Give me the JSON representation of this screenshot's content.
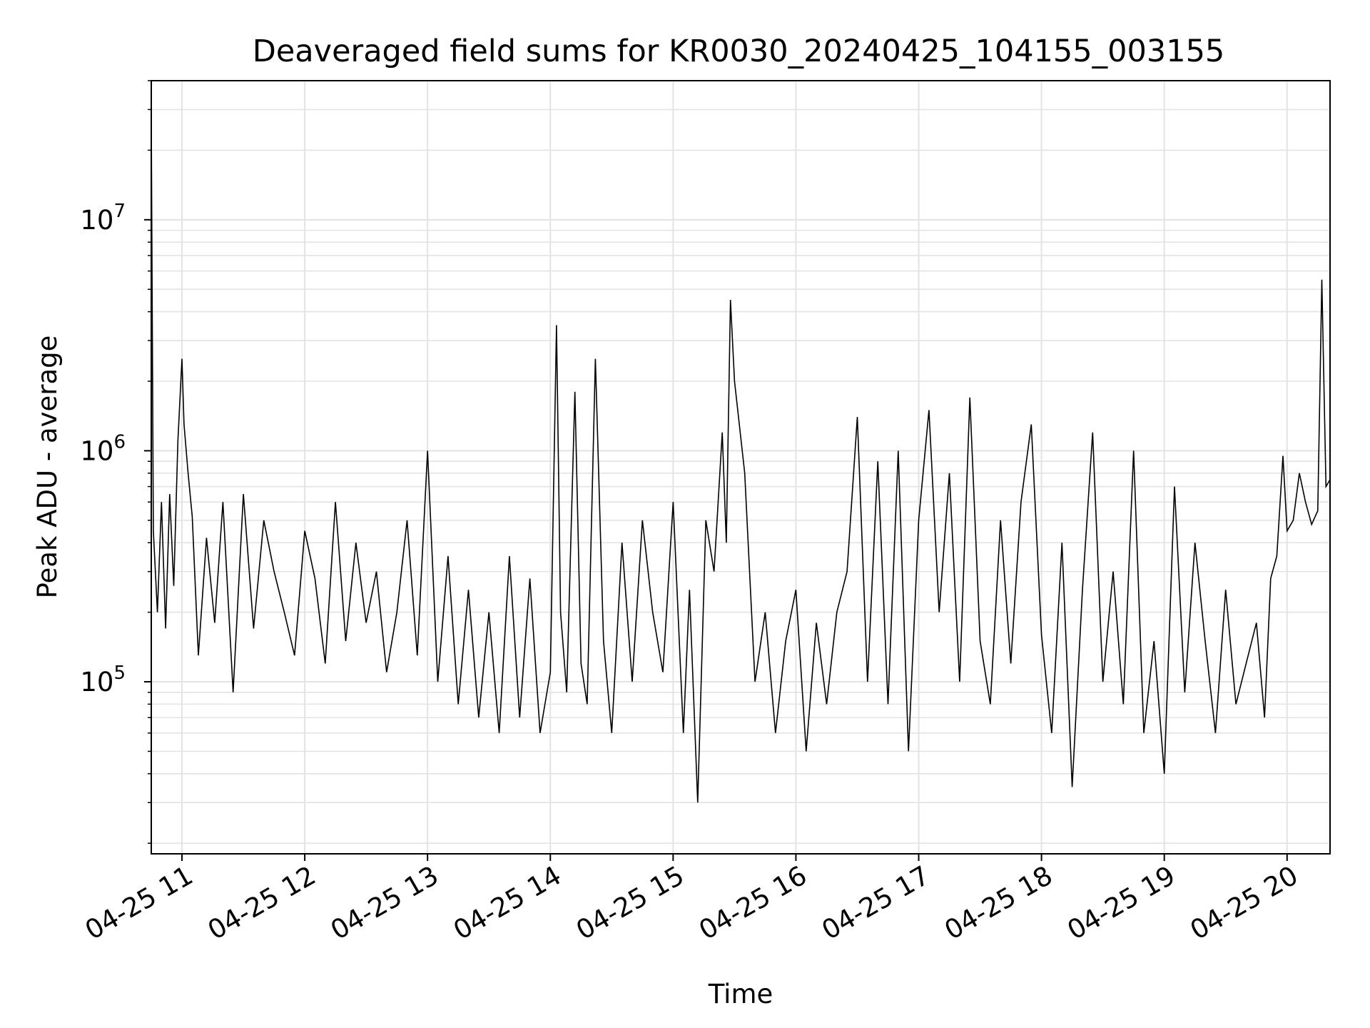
{
  "chart_data": {
    "type": "line",
    "title": "Deaveraged field sums for KR0030_20240425_104155_003155",
    "xlabel": "Time",
    "ylabel": "Peak ADU - average",
    "yscale": "log",
    "ylim": [
      18000,
      40000000
    ],
    "xlim": [
      "2024-04-25 10:45",
      "2024-04-25 20:21"
    ],
    "grid": "both",
    "x_ticks": [
      "2024-04-25 11:00",
      "2024-04-25 12:00",
      "2024-04-25 13:00",
      "2024-04-25 14:00",
      "2024-04-25 15:00",
      "2024-04-25 16:00",
      "2024-04-25 17:00",
      "2024-04-25 18:00",
      "2024-04-25 19:00",
      "2024-04-25 20:00"
    ],
    "x_tick_labels": [
      "04-25 11",
      "04-25 12",
      "04-25 13",
      "04-25 14",
      "04-25 15",
      "04-25 16",
      "04-25 17",
      "04-25 18",
      "04-25 19",
      "04-25 20"
    ],
    "y_ticks": [
      {
        "base": "10",
        "exp": "5",
        "value": 100000
      },
      {
        "base": "10",
        "exp": "6",
        "value": 1000000
      },
      {
        "base": "10",
        "exp": "7",
        "value": 10000000
      }
    ],
    "line_color": "#000000",
    "series": [
      {
        "x": [
          "2024-04-25 10:45",
          "2024-04-25 10:46",
          "2024-04-25 10:48",
          "2024-04-25 10:50",
          "2024-04-25 10:52",
          "2024-04-25 10:54",
          "2024-04-25 10:56",
          "2024-04-25 10:58",
          "2024-04-25 11:00",
          "2024-04-25 11:01",
          "2024-04-25 11:03",
          "2024-04-25 11:05",
          "2024-04-25 11:08",
          "2024-04-25 11:12",
          "2024-04-25 11:16",
          "2024-04-25 11:20",
          "2024-04-25 11:25",
          "2024-04-25 11:30",
          "2024-04-25 11:35",
          "2024-04-25 11:40",
          "2024-04-25 11:45",
          "2024-04-25 11:50",
          "2024-04-25 11:55",
          "2024-04-25 12:00",
          "2024-04-25 12:05",
          "2024-04-25 12:10",
          "2024-04-25 12:15",
          "2024-04-25 12:20",
          "2024-04-25 12:25",
          "2024-04-25 12:30",
          "2024-04-25 12:35",
          "2024-04-25 12:40",
          "2024-04-25 12:45",
          "2024-04-25 12:50",
          "2024-04-25 12:55",
          "2024-04-25 13:00",
          "2024-04-25 13:05",
          "2024-04-25 13:10",
          "2024-04-25 13:15",
          "2024-04-25 13:20",
          "2024-04-25 13:25",
          "2024-04-25 13:30",
          "2024-04-25 13:35",
          "2024-04-25 13:40",
          "2024-04-25 13:45",
          "2024-04-25 13:50",
          "2024-04-25 13:55",
          "2024-04-25 14:00",
          "2024-04-25 14:03",
          "2024-04-25 14:05",
          "2024-04-25 14:08",
          "2024-04-25 14:12",
          "2024-04-25 14:15",
          "2024-04-25 14:18",
          "2024-04-25 14:22",
          "2024-04-25 14:26",
          "2024-04-25 14:30",
          "2024-04-25 14:35",
          "2024-04-25 14:40",
          "2024-04-25 14:45",
          "2024-04-25 14:50",
          "2024-04-25 14:55",
          "2024-04-25 15:00",
          "2024-04-25 15:05",
          "2024-04-25 15:08",
          "2024-04-25 15:12",
          "2024-04-25 15:16",
          "2024-04-25 15:20",
          "2024-04-25 15:24",
          "2024-04-25 15:26",
          "2024-04-25 15:28",
          "2024-04-25 15:30",
          "2024-04-25 15:35",
          "2024-04-25 15:40",
          "2024-04-25 15:45",
          "2024-04-25 15:50",
          "2024-04-25 15:55",
          "2024-04-25 16:00",
          "2024-04-25 16:05",
          "2024-04-25 16:10",
          "2024-04-25 16:15",
          "2024-04-25 16:20",
          "2024-04-25 16:25",
          "2024-04-25 16:30",
          "2024-04-25 16:35",
          "2024-04-25 16:40",
          "2024-04-25 16:45",
          "2024-04-25 16:50",
          "2024-04-25 16:55",
          "2024-04-25 17:00",
          "2024-04-25 17:05",
          "2024-04-25 17:10",
          "2024-04-25 17:15",
          "2024-04-25 17:20",
          "2024-04-25 17:25",
          "2024-04-25 17:30",
          "2024-04-25 17:35",
          "2024-04-25 17:40",
          "2024-04-25 17:45",
          "2024-04-25 17:50",
          "2024-04-25 17:55",
          "2024-04-25 18:00",
          "2024-04-25 18:05",
          "2024-04-25 18:10",
          "2024-04-25 18:15",
          "2024-04-25 18:20",
          "2024-04-25 18:25",
          "2024-04-25 18:30",
          "2024-04-25 18:35",
          "2024-04-25 18:40",
          "2024-04-25 18:45",
          "2024-04-25 18:50",
          "2024-04-25 18:55",
          "2024-04-25 19:00",
          "2024-04-25 19:05",
          "2024-04-25 19:10",
          "2024-04-25 19:15",
          "2024-04-25 19:20",
          "2024-04-25 19:25",
          "2024-04-25 19:30",
          "2024-04-25 19:35",
          "2024-04-25 19:40",
          "2024-04-25 19:45",
          "2024-04-25 19:49",
          "2024-04-25 19:52",
          "2024-04-25 19:55",
          "2024-04-25 19:58",
          "2024-04-25 20:00",
          "2024-04-25 20:03",
          "2024-04-25 20:06",
          "2024-04-25 20:09",
          "2024-04-25 20:12",
          "2024-04-25 20:15",
          "2024-04-25 20:17",
          "2024-04-25 20:19",
          "2024-04-25 20:21"
        ],
        "y": [
          28000000,
          450000,
          200000,
          600000,
          170000,
          650000,
          260000,
          1100000,
          2500000,
          1300000,
          800000,
          520000,
          130000,
          420000,
          180000,
          600000,
          90000,
          650000,
          170000,
          500000,
          300000,
          200000,
          130000,
          450000,
          280000,
          120000,
          600000,
          150000,
          400000,
          180000,
          300000,
          110000,
          200000,
          500000,
          130000,
          1000000,
          100000,
          350000,
          80000,
          250000,
          70000,
          200000,
          60000,
          350000,
          70000,
          280000,
          60000,
          110000,
          3500000,
          200000,
          90000,
          1800000,
          120000,
          80000,
          2500000,
          150000,
          60000,
          400000,
          100000,
          500000,
          200000,
          110000,
          600000,
          60000,
          250000,
          30000,
          500000,
          300000,
          1200000,
          400000,
          4500000,
          2000000,
          800000,
          100000,
          200000,
          60000,
          150000,
          250000,
          50000,
          180000,
          80000,
          200000,
          300000,
          1400000,
          100000,
          900000,
          80000,
          1000000,
          50000,
          500000,
          1500000,
          200000,
          800000,
          100000,
          1700000,
          150000,
          80000,
          500000,
          120000,
          600000,
          1300000,
          160000,
          60000,
          400000,
          35000,
          250000,
          1200000,
          100000,
          300000,
          80000,
          1000000,
          60000,
          150000,
          40000,
          700000,
          90000,
          400000,
          150000,
          60000,
          250000,
          80000,
          120000,
          180000,
          70000,
          280000,
          350000,
          950000,
          450000,
          500000,
          800000,
          600000,
          480000,
          550000,
          5500000,
          700000,
          750000
        ]
      }
    ]
  }
}
